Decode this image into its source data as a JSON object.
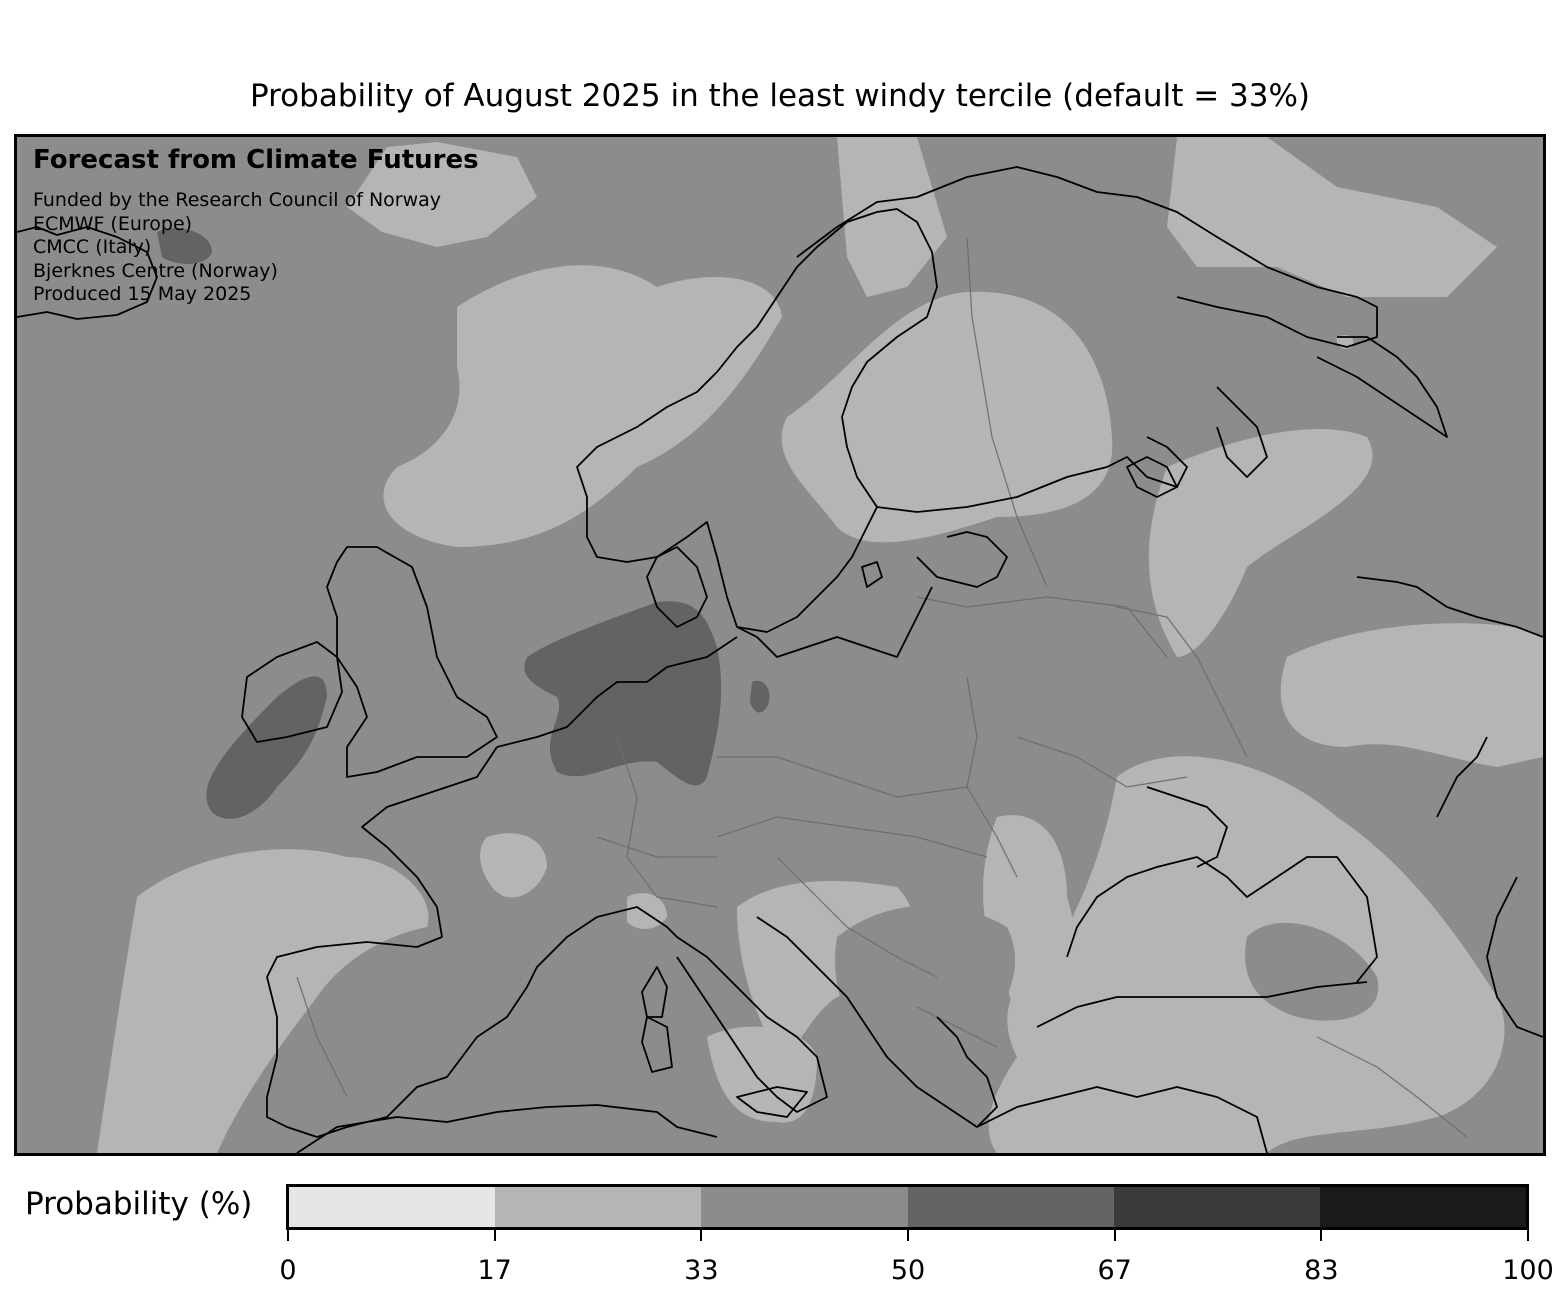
{
  "title": "Probability of August 2025 in the least windy tercile (default = 33%)",
  "credits": {
    "heading": "Forecast from Climate Futures",
    "lines": [
      "Funded by the Research Council of Norway",
      "ECMWF (Europe)",
      "CMCC (Italy)",
      "Bjerknes Centre (Norway)",
      "Produced 15 May 2025"
    ]
  },
  "colorbar": {
    "label": "Probability (%)",
    "ticks": [
      "0",
      "17",
      "33",
      "50",
      "67",
      "83",
      "100"
    ],
    "bin_colors": [
      "#e6e6e6",
      "#b5b5b5",
      "#8c8c8c",
      "#636363",
      "#3b3b3b",
      "#1a1a1a"
    ]
  },
  "map": {
    "region": "Europe",
    "background_color": "#8c8c8c",
    "coastline_color": "#000000",
    "border_color": "#6e6e6e"
  }
}
